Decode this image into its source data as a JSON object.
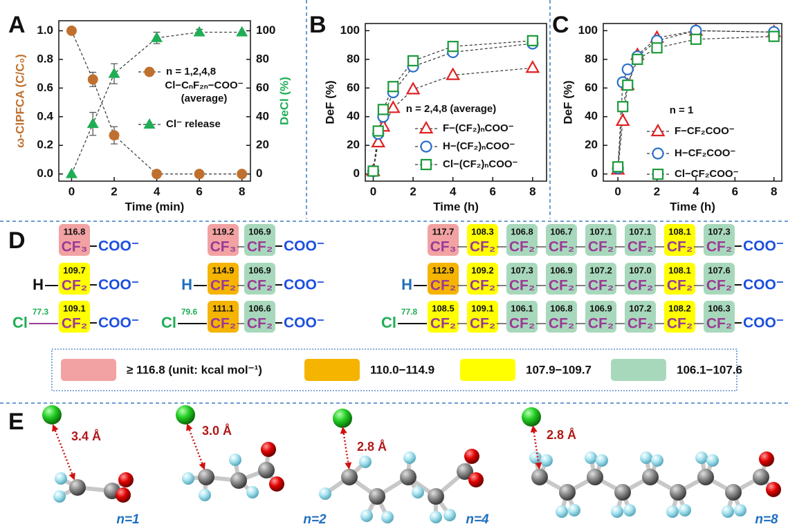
{
  "chart_data": [
    {
      "panel": "A",
      "type": "line",
      "xlabel": "Time (min)",
      "ylabel": "ω-ClPFCA (C/C₀)",
      "y2label": "DeCl (%)",
      "x": [
        0,
        1,
        2,
        4,
        6,
        8
      ],
      "series": [
        {
          "name": "Cl−CₙF₂ₙ−COO⁻",
          "color": "#c0702e",
          "marker": "circle",
          "filled": true,
          "values": [
            1,
            0.66,
            0.27,
            0,
            0,
            0
          ],
          "errors": [
            null,
            0.05,
            0.06,
            null,
            null,
            null
          ]
        },
        {
          "name": "Cl⁻ release",
          "color": "#1fae55",
          "marker": "triangle",
          "filled": true,
          "axis": "y2",
          "values": [
            0,
            35,
            70,
            95,
            99,
            99
          ],
          "errors": [
            null,
            8,
            7,
            4,
            2,
            null
          ]
        }
      ],
      "legend_title": "n = 1,2,4,8",
      "legend_note": "(average)",
      "xlim": [
        -0.6,
        8.4
      ],
      "xticks": [
        0,
        2,
        4,
        6,
        8
      ],
      "ylim": [
        -0.05,
        1.07
      ],
      "yticks": [
        {
          "value": 0,
          "label": "0.0"
        },
        {
          "value": 0.2,
          "label": "0.2"
        },
        {
          "value": 0.4,
          "label": "0.4"
        },
        {
          "value": 0.6,
          "label": "0.6"
        },
        {
          "value": 0.8,
          "label": "0.8"
        },
        {
          "value": 1,
          "label": "1.0"
        }
      ],
      "y2lim": [
        -5,
        107
      ],
      "y2ticks": [
        0,
        20,
        40,
        60,
        80,
        100
      ]
    },
    {
      "panel": "B",
      "type": "line",
      "xlabel": "Time (h)",
      "ylabel": "DeF (%)",
      "x": [
        0,
        0.25,
        0.5,
        1,
        2,
        4,
        8
      ],
      "series": [
        {
          "name": "F−(CF₂)ₙCOO⁻",
          "color": "#e02020",
          "marker": "triangle",
          "filled": false,
          "values": [
            2,
            22,
            33,
            46,
            59,
            69,
            74
          ]
        },
        {
          "name": "H−(CF₂)ₙCOO⁻",
          "color": "#2a6fc9",
          "marker": "circle",
          "filled": false,
          "values": [
            2,
            28,
            40,
            57,
            75,
            85,
            91
          ]
        },
        {
          "name": "Cl−(CF₂)ₙCOO⁻",
          "color": "#1a9a3a",
          "marker": "square",
          "filled": false,
          "values": [
            2,
            30,
            45,
            61,
            79,
            89,
            93
          ]
        }
      ],
      "legend_title": "n = 2,4,8 (average)",
      "xlim": [
        -0.4,
        8.7
      ],
      "xticks": [
        0,
        2,
        4,
        6,
        8
      ],
      "ylim": [
        -5,
        105
      ],
      "yticks": [
        0,
        20,
        40,
        60,
        80,
        100
      ]
    },
    {
      "panel": "C",
      "type": "line",
      "xlabel": "Time (h)",
      "ylabel": "DeF (%)",
      "x": [
        0,
        0.25,
        0.5,
        1,
        2,
        4,
        8
      ],
      "series": [
        {
          "name": "F−CF₂COO⁻",
          "color": "#e02020",
          "marker": "triangle",
          "filled": false,
          "values": [
            3,
            37,
            62,
            83,
            95,
            100,
            99
          ]
        },
        {
          "name": "H−CF₂COO⁻",
          "color": "#2a6fc9",
          "marker": "circle",
          "filled": false,
          "values": [
            4,
            64,
            73,
            82,
            93,
            100,
            99
          ]
        },
        {
          "name": "Cl−CF₂COO⁻",
          "color": "#1a9a3a",
          "marker": "square",
          "filled": false,
          "values": [
            5,
            47,
            62,
            80,
            88,
            94,
            96
          ]
        }
      ],
      "legend_title": "n = 1",
      "xlim": [
        -0.75,
        8.4
      ],
      "xticks": [
        0,
        2,
        4,
        6,
        8
      ],
      "ylim": [
        -5,
        105
      ],
      "yticks": [
        0,
        20,
        40,
        60,
        80,
        100
      ]
    }
  ],
  "panel_d": {
    "label": "D",
    "columns": [
      {
        "rows": [
          {
            "units": [
              {
                "formula": "CF₃",
                "value": "116.8",
                "color": "#f2a2a2"
              }
            ],
            "tail": "COO⁻"
          },
          {
            "head": "H",
            "head_color": "#111111",
            "units": [
              {
                "formula": "CF₂",
                "value": "109.7",
                "color": "#ffff00"
              }
            ],
            "tail": "COO⁻"
          },
          {
            "head": "Cl",
            "head_color": "#1fae55",
            "bond_value": "77.3",
            "units": [
              {
                "formula": "CF₂",
                "value": "109.1",
                "color": "#ffff00"
              }
            ],
            "tail": "COO⁻"
          }
        ]
      },
      {
        "rows": [
          {
            "units": [
              {
                "formula": "CF₃",
                "value": "119.2",
                "color": "#f2a2a2"
              },
              {
                "formula": "CF₂",
                "value": "106.9",
                "color": "#a8d8bc"
              }
            ],
            "tail": "COO⁻"
          },
          {
            "head": "H",
            "head_color": "#1f6fc0",
            "units": [
              {
                "formula": "CF₂",
                "value": "114.9",
                "color": "#f5b400"
              },
              {
                "formula": "CF₂",
                "value": "106.9",
                "color": "#a8d8bc"
              }
            ],
            "tail": "COO⁻"
          },
          {
            "head": "Cl",
            "head_color": "#1fae55",
            "bond_value": "79.6",
            "units": [
              {
                "formula": "CF₂",
                "value": "111.1",
                "color": "#f5b400"
              },
              {
                "formula": "CF₂",
                "value": "106.6",
                "color": "#a8d8bc"
              }
            ],
            "tail": "COO⁻"
          }
        ]
      },
      {
        "rows": [
          {
            "units": [
              {
                "formula": "CF₃",
                "value": "117.7",
                "color": "#f2a2a2"
              },
              {
                "formula": "CF₂",
                "value": "108.3",
                "color": "#ffff00"
              },
              {
                "formula": "CF₂",
                "value": "106.8",
                "color": "#a8d8bc"
              },
              {
                "formula": "CF₂",
                "value": "106.7",
                "color": "#a8d8bc"
              },
              {
                "formula": "CF₂",
                "value": "107.1",
                "color": "#a8d8bc"
              },
              {
                "formula": "CF₂",
                "value": "107.1",
                "color": "#a8d8bc"
              },
              {
                "formula": "CF₂",
                "value": "108.1",
                "color": "#ffff00"
              },
              {
                "formula": "CF₂",
                "value": "107.3",
                "color": "#a8d8bc"
              }
            ],
            "tail": "COO⁻"
          },
          {
            "head": "H",
            "head_color": "#1f6fc0",
            "units": [
              {
                "formula": "CF₂",
                "value": "112.9",
                "color": "#f5b400"
              },
              {
                "formula": "CF₂",
                "value": "109.2",
                "color": "#ffff00"
              },
              {
                "formula": "CF₂",
                "value": "107.3",
                "color": "#a8d8bc"
              },
              {
                "formula": "CF₂",
                "value": "106.9",
                "color": "#a8d8bc"
              },
              {
                "formula": "CF₂",
                "value": "107.2",
                "color": "#a8d8bc"
              },
              {
                "formula": "CF₂",
                "value": "107.0",
                "color": "#a8d8bc"
              },
              {
                "formula": "CF₂",
                "value": "108.1",
                "color": "#ffff00"
              },
              {
                "formula": "CF₂",
                "value": "107.6",
                "color": "#a8d8bc"
              }
            ],
            "tail": "COO⁻"
          },
          {
            "head": "Cl",
            "head_color": "#1fae55",
            "bond_value": "77.8",
            "units": [
              {
                "formula": "CF₂",
                "value": "108.5",
                "color": "#ffff00"
              },
              {
                "formula": "CF₂",
                "value": "109.1",
                "color": "#ffff00"
              },
              {
                "formula": "CF₂",
                "value": "106.1",
                "color": "#a8d8bc"
              },
              {
                "formula": "CF₂",
                "value": "106.8",
                "color": "#a8d8bc"
              },
              {
                "formula": "CF₂",
                "value": "106.9",
                "color": "#a8d8bc"
              },
              {
                "formula": "CF₂",
                "value": "107.2",
                "color": "#a8d8bc"
              },
              {
                "formula": "CF₂",
                "value": "108.2",
                "color": "#ffff00"
              },
              {
                "formula": "CF₂",
                "value": "106.3",
                "color": "#a8d8bc"
              }
            ],
            "tail": "COO⁻"
          }
        ]
      }
    ],
    "legend": [
      {
        "label": "≥ 116.8 (unit: kcal mol⁻¹)",
        "color": "#f2a2a2"
      },
      {
        "label": "110.0−114.9",
        "color": "#f5b400"
      },
      {
        "label": "107.9−109.7",
        "color": "#ffff00"
      },
      {
        "label": "106.1−107.6",
        "color": "#a8d8bc"
      }
    ]
  },
  "panel_e": {
    "label": "E",
    "molecules": [
      {
        "distance": "3.4 Å",
        "n_label": "n=1"
      },
      {
        "distance": "3.0 Å",
        "n_label": "n=2"
      },
      {
        "distance": "2.8 Å",
        "n_label": "n=4"
      },
      {
        "distance": "2.8 Å",
        "n_label": "n=8"
      }
    ]
  }
}
